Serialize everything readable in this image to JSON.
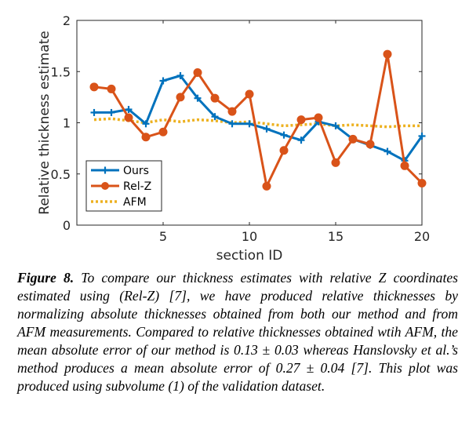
{
  "chart_data": {
    "type": "line",
    "xlabel": "section ID",
    "ylabel": "Relative thickness estimate",
    "xlim": [
      0,
      20
    ],
    "ylim": [
      0,
      2
    ],
    "xticks": [
      5,
      10,
      15,
      20
    ],
    "yticks": [
      0,
      0.5,
      1,
      1.5,
      2
    ],
    "xtick_labels": [
      "5",
      "10",
      "15",
      "20"
    ],
    "ytick_labels": [
      "0",
      "0.5",
      "1",
      "1.5",
      "2"
    ],
    "grid": false,
    "legend_position": "bottom-left",
    "x": [
      1,
      2,
      3,
      4,
      5,
      6,
      7,
      8,
      9,
      10,
      11,
      12,
      13,
      14,
      15,
      16,
      17,
      18,
      19,
      20
    ],
    "series": [
      {
        "name": "Ours",
        "color": "#0072bd",
        "marker": "plus",
        "linestyle": "solid",
        "values": [
          1.1,
          1.1,
          1.13,
          0.99,
          1.41,
          1.46,
          1.24,
          1.06,
          0.99,
          0.99,
          0.94,
          0.88,
          0.83,
          1.01,
          0.97,
          0.84,
          0.78,
          0.72,
          0.63,
          0.87
        ]
      },
      {
        "name": "Rel-Z",
        "color": "#d95319",
        "marker": "circle",
        "linestyle": "solid",
        "values": [
          1.35,
          1.33,
          1.05,
          0.86,
          0.91,
          1.25,
          1.49,
          1.24,
          1.11,
          1.28,
          0.38,
          0.73,
          1.03,
          1.05,
          0.61,
          0.84,
          0.79,
          1.67,
          0.58,
          0.41
        ]
      },
      {
        "name": "AFM",
        "color": "#edb120",
        "marker": "none",
        "linestyle": "dotted",
        "values": [
          1.03,
          1.04,
          1.02,
          1.0,
          1.03,
          1.01,
          1.03,
          1.02,
          1.0,
          1.01,
          0.99,
          0.97,
          0.98,
          0.99,
          0.97,
          0.98,
          0.97,
          0.96,
          0.97,
          0.97
        ]
      }
    ]
  },
  "caption": {
    "label": "Figure 8.",
    "text": " To compare our thickness estimates with relative Z coordinates estimated using (Rel-Z) [7], we have produced relative thicknesses by normalizing absolute thicknesses obtained from both our method and from AFM measurements. Compared to relative thicknesses obtained wtih AFM, the mean absolute error of our method is 0.13 ± 0.03 whereas Hanslovsky et al.’s method produces a mean absolute error of 0.27 ± 0.04 [7]. This plot was produced using subvolume (1) of the validation dataset."
  }
}
